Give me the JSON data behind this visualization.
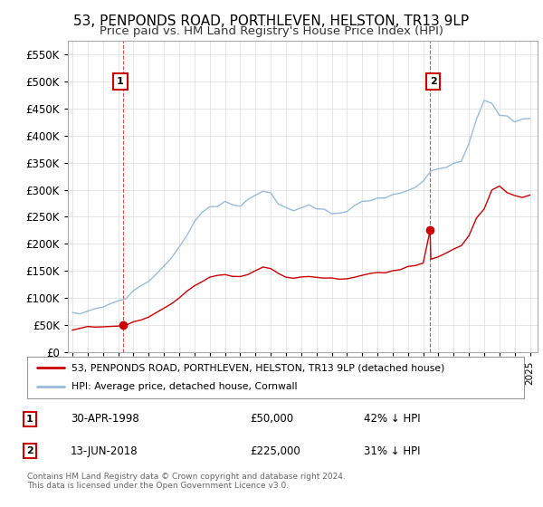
{
  "title": "53, PENPONDS ROAD, PORTHLEVEN, HELSTON, TR13 9LP",
  "subtitle": "Price paid vs. HM Land Registry's House Price Index (HPI)",
  "legend_label_red": "53, PENPONDS ROAD, PORTHLEVEN, HELSTON, TR13 9LP (detached house)",
  "legend_label_blue": "HPI: Average price, detached house, Cornwall",
  "footnote": "Contains HM Land Registry data © Crown copyright and database right 2024.\nThis data is licensed under the Open Government Licence v3.0.",
  "table": [
    {
      "num": "1",
      "date": "30-APR-1998",
      "price": "£50,000",
      "hpi": "42% ↓ HPI"
    },
    {
      "num": "2",
      "date": "13-JUN-2018",
      "price": "£225,000",
      "hpi": "31% ↓ HPI"
    }
  ],
  "ylim": [
    0,
    575000
  ],
  "yticks": [
    0,
    50000,
    100000,
    150000,
    200000,
    250000,
    300000,
    350000,
    400000,
    450000,
    500000,
    550000
  ],
  "xlim_start": 1994.7,
  "xlim_end": 2025.5,
  "red_color": "#cc0000",
  "blue_color": "#99bbdd",
  "grid_color": "#dddddd",
  "background_color": "#ffffff",
  "title_fontsize": 11,
  "subtitle_fontsize": 9.5,
  "axis_fontsize": 8,
  "sale1_year": 1998.33,
  "sale1_value": 50000,
  "sale2_year": 2018.45,
  "sale2_value": 225000,
  "hpi_years": [
    1995.0,
    1995.5,
    1996.0,
    1996.5,
    1997.0,
    1997.5,
    1998.0,
    1998.5,
    1999.0,
    1999.5,
    2000.0,
    2000.5,
    2001.0,
    2001.5,
    2002.0,
    2002.5,
    2003.0,
    2003.5,
    2004.0,
    2004.5,
    2005.0,
    2005.5,
    2006.0,
    2006.5,
    2007.0,
    2007.5,
    2008.0,
    2008.5,
    2009.0,
    2009.5,
    2010.0,
    2010.5,
    2011.0,
    2011.5,
    2012.0,
    2012.5,
    2013.0,
    2013.5,
    2014.0,
    2014.5,
    2015.0,
    2015.5,
    2016.0,
    2016.5,
    2017.0,
    2017.5,
    2018.0,
    2018.5,
    2019.0,
    2019.5,
    2020.0,
    2020.5,
    2021.0,
    2021.5,
    2022.0,
    2022.5,
    2023.0,
    2023.5,
    2024.0,
    2024.5,
    2025.0
  ],
  "hpi_values": [
    70000,
    72000,
    76000,
    80000,
    85000,
    90000,
    95000,
    102000,
    112000,
    122000,
    132000,
    145000,
    158000,
    175000,
    195000,
    218000,
    240000,
    258000,
    268000,
    272000,
    275000,
    272000,
    270000,
    278000,
    290000,
    300000,
    295000,
    278000,
    265000,
    262000,
    268000,
    270000,
    268000,
    263000,
    260000,
    258000,
    262000,
    268000,
    275000,
    280000,
    283000,
    285000,
    290000,
    295000,
    302000,
    308000,
    315000,
    330000,
    338000,
    342000,
    345000,
    352000,
    385000,
    430000,
    465000,
    460000,
    440000,
    435000,
    425000,
    428000,
    432000
  ],
  "red_years": [
    1995.0,
    1995.5,
    1996.0,
    1996.5,
    1997.0,
    1997.5,
    1998.0,
    1998.33,
    1998.5,
    1999.0,
    1999.5,
    2000.0,
    2000.5,
    2001.0,
    2001.5,
    2002.0,
    2002.5,
    2003.0,
    2003.5,
    2004.0,
    2004.5,
    2005.0,
    2005.5,
    2006.0,
    2006.5,
    2007.0,
    2007.5,
    2008.0,
    2008.5,
    2009.0,
    2009.5,
    2010.0,
    2010.5,
    2011.0,
    2011.5,
    2012.0,
    2012.5,
    2013.0,
    2013.5,
    2014.0,
    2014.5,
    2015.0,
    2015.5,
    2016.0,
    2016.5,
    2017.0,
    2017.5,
    2018.0,
    2018.45,
    2018.5,
    2019.0,
    2019.5,
    2020.0,
    2020.5,
    2021.0,
    2021.5,
    2022.0,
    2022.5,
    2023.0,
    2023.5,
    2024.0,
    2024.5,
    2025.0
  ],
  "red_values": [
    43000,
    44500,
    46000,
    47000,
    48000,
    49000,
    49500,
    50000,
    51000,
    55000,
    60000,
    65000,
    72000,
    80000,
    90000,
    100000,
    112000,
    123000,
    132000,
    138000,
    141000,
    143000,
    141000,
    140000,
    144000,
    151000,
    156000,
    153000,
    145000,
    138000,
    136000,
    139000,
    140000,
    139000,
    137000,
    135000,
    134000,
    136000,
    139000,
    143000,
    145000,
    147000,
    148000,
    150000,
    153000,
    157000,
    160000,
    163000,
    225000,
    172000,
    176000,
    182000,
    190000,
    198000,
    215000,
    248000,
    265000,
    300000,
    305000,
    295000,
    290000,
    285000,
    290000
  ]
}
